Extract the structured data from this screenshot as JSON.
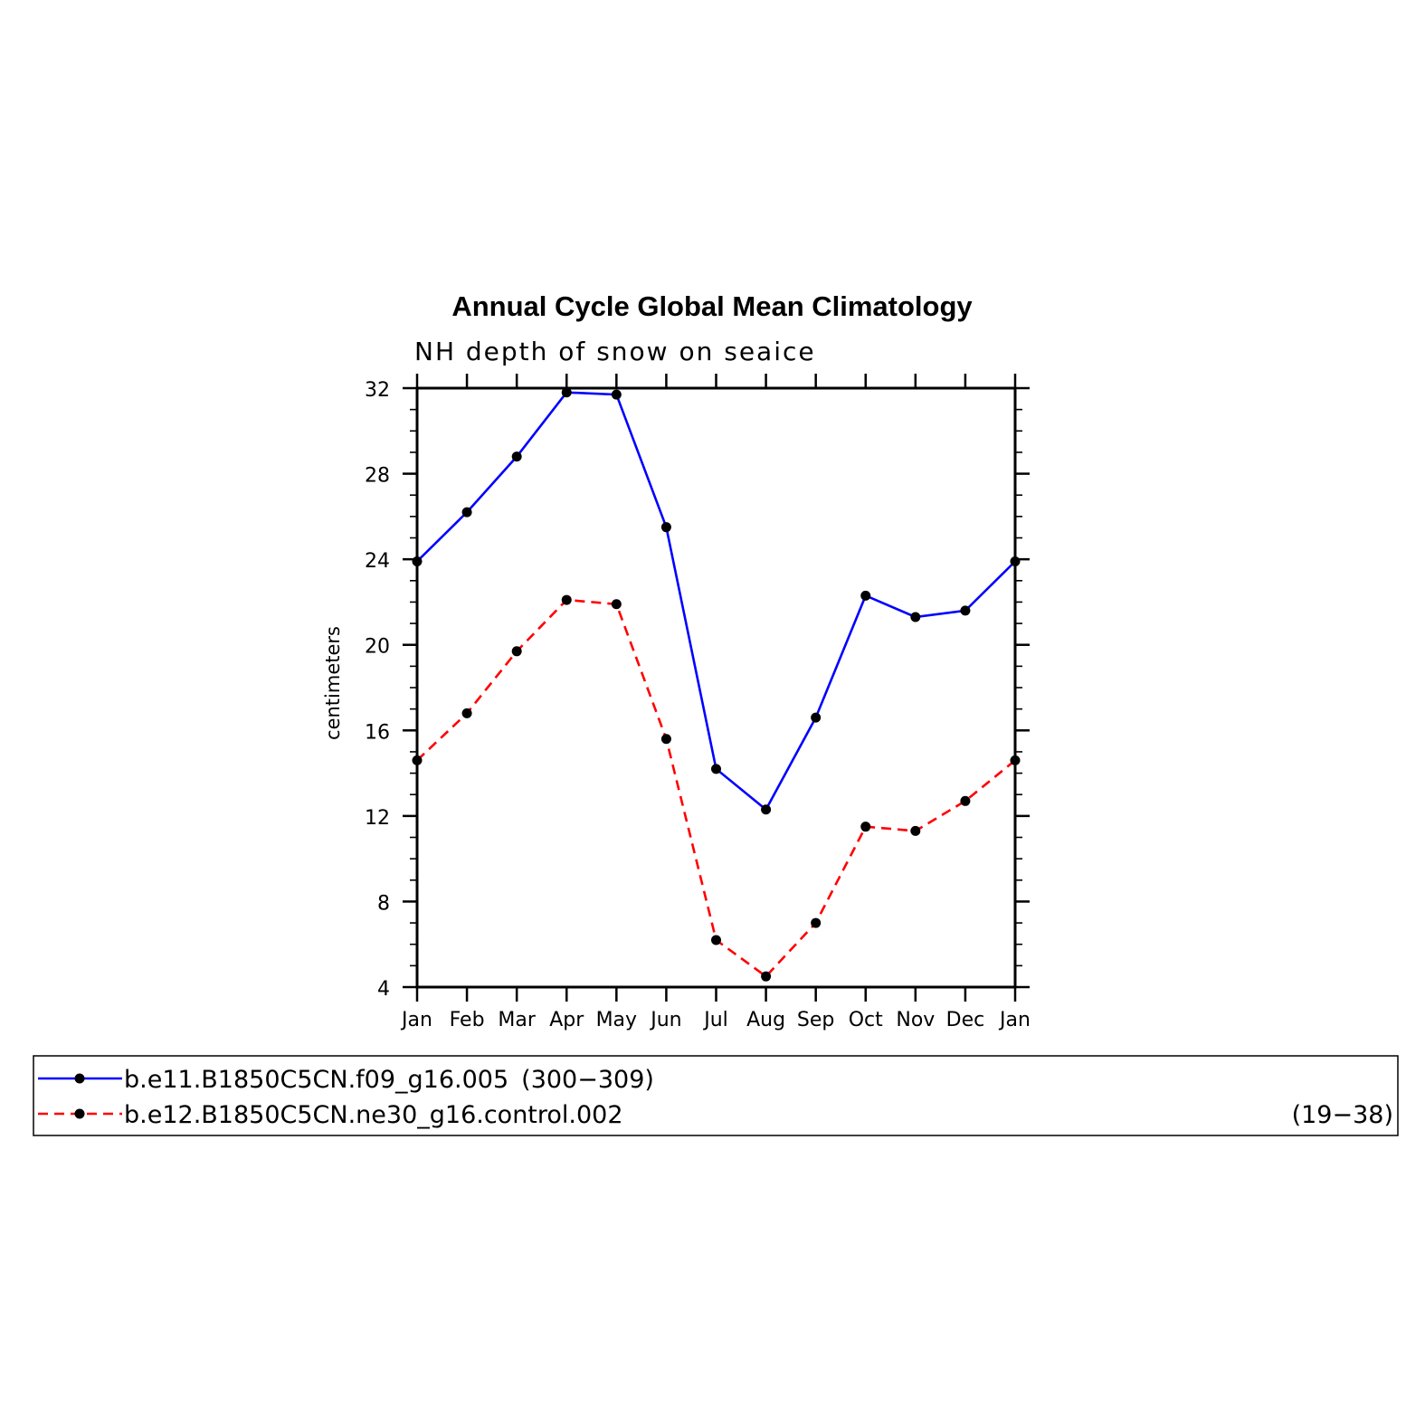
{
  "chart_data": {
    "type": "line",
    "title": "Annual Cycle Global Mean Climatology",
    "subtitle": "NH depth of snow on seaice",
    "xlabel": "",
    "ylabel": "centimeters",
    "categories": [
      "Jan",
      "Feb",
      "Mar",
      "Apr",
      "May",
      "Jun",
      "Jul",
      "Aug",
      "Sep",
      "Oct",
      "Nov",
      "Dec",
      "Jan"
    ],
    "ylim": [
      4,
      32
    ],
    "yticks": [
      "4",
      "8",
      "12",
      "16",
      "20",
      "24",
      "28",
      "32"
    ],
    "series": [
      {
        "name": "b.e11.B1850C5CN.f09_g16.005",
        "years": "(300−309)",
        "color": "#0000ff",
        "dash": "solid",
        "values": [
          23.9,
          26.2,
          28.8,
          31.8,
          31.7,
          25.5,
          14.2,
          12.3,
          16.6,
          22.3,
          21.3,
          21.6,
          23.9
        ]
      },
      {
        "name": "b.e12.B1850C5CN.ne30_g16.control.002",
        "years": "(19−38)",
        "color": "#ff0000",
        "dash": "dashed",
        "values": [
          14.6,
          16.8,
          19.7,
          22.1,
          21.9,
          15.6,
          6.2,
          4.5,
          7.0,
          11.5,
          11.3,
          12.7,
          14.6
        ]
      }
    ],
    "marker_color": "#000000"
  }
}
